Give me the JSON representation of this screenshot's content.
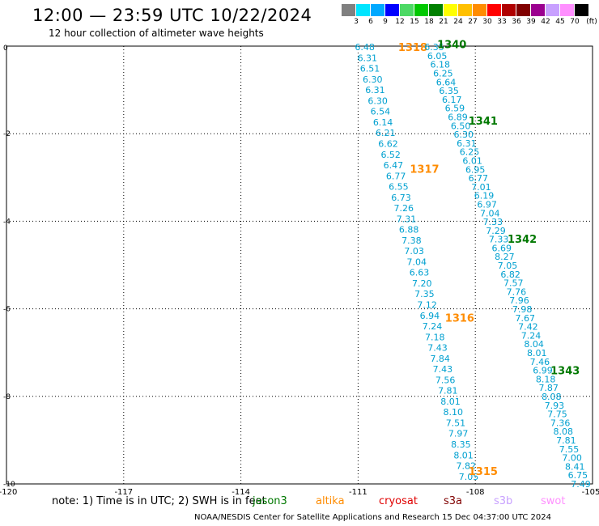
{
  "title": "12:00 — 23:59 UTC 10/22/2024",
  "subtitle": "12 hour collection of altimeter wave heights",
  "colorbar": {
    "labels": [
      "3",
      "6",
      "9",
      "12",
      "15",
      "18",
      "21",
      "24",
      "27",
      "30",
      "33",
      "36",
      "39",
      "42",
      "45",
      "70"
    ],
    "unit": "(ft)",
    "colors": [
      "#808080",
      "#00e5ff",
      "#00a9ff",
      "#0000ff",
      "#4cd964",
      "#00c800",
      "#008000",
      "#ffff00",
      "#ffc000",
      "#ff8c00",
      "#ff0000",
      "#b00000",
      "#800000",
      "#9b008f",
      "#c8a0ff",
      "#ff90ff",
      "#000000"
    ]
  },
  "axes": {
    "x_ticks": [
      "-120",
      "-117",
      "-114",
      "-111",
      "-108",
      "-105"
    ],
    "y_ticks": [
      "0",
      "-2",
      "-4",
      "-6",
      "-8",
      "-10"
    ]
  },
  "wave_colors": {
    "value_text": "#00a0d0",
    "jason3": "#007800",
    "altika": "#ff8c00"
  },
  "tracks": [
    {
      "pass": "1318",
      "color": "#ff8c00",
      "label_pos": [
        -109.6,
        -0.02
      ],
      "start": [
        -110.83,
        -0.02
      ],
      "end": [
        -108.17,
        -9.83
      ],
      "values": [
        "6.48",
        "6.31",
        "6.51",
        "6.30",
        "6.31",
        "6.30",
        "6.54",
        "6.14",
        "6.21",
        "6.62",
        "6.52",
        "6.47",
        "6.77",
        "6.55",
        "6.73",
        "7.26",
        "7.31",
        "6.88",
        "7.38",
        "7.03",
        "7.04",
        "6.63",
        "7.20",
        "7.35",
        "7.12",
        "6.94",
        "7.24",
        "7.18",
        "7.43",
        "7.84",
        "7.43",
        "7.56",
        "7.81",
        "8.01",
        "8.10",
        "7.51",
        "7.97",
        "8.35",
        "8.01",
        "7.82",
        "7.05"
      ]
    },
    {
      "pass": "1317",
      "color": "#ff8c00",
      "label_pos": [
        -109.3,
        -2.8
      ],
      "start": null,
      "end": null,
      "values": []
    },
    {
      "pass": "1316",
      "color": "#ff8c00",
      "label_pos": [
        -108.4,
        -6.2
      ],
      "start": null,
      "end": null,
      "values": []
    },
    {
      "pass": "1315",
      "color": "#ff8c00",
      "label_pos": [
        -107.8,
        -9.7
      ],
      "start": null,
      "end": null,
      "values": []
    },
    {
      "pass": "1340",
      "color": "#007800",
      "label_pos": [
        -108.6,
        0.05
      ],
      "start": [
        -109.05,
        -0.02
      ],
      "end": [
        -105.3,
        -10.0
      ],
      "values": [
        "6.35",
        "6.05",
        "6.18",
        "6.25",
        "6.64",
        "6.35",
        "6.17",
        "6.59",
        "6.89",
        "6.50",
        "6.30",
        "6.31",
        "6.25",
        "6.01",
        "6.95",
        "6.77",
        "7.01",
        "6.19",
        "6.97",
        "7.04",
        "7.33",
        "7.29",
        "7.33",
        "6.69",
        "8.27",
        "7.05",
        "6.82",
        "7.57",
        "7.76",
        "7.96",
        "7.98",
        "7.67",
        "7.42",
        "7.24",
        "8.04",
        "8.01",
        "7.46",
        "6.99",
        "8.18",
        "7.87",
        "8.08",
        "7.93",
        "7.75",
        "7.36",
        "8.08",
        "7.81",
        "7.55",
        "7.00",
        "8.41",
        "6.75",
        "7.49"
      ]
    },
    {
      "pass": "1341",
      "color": "#007800",
      "label_pos": [
        -107.8,
        -1.7
      ],
      "start": null,
      "end": null,
      "values": []
    },
    {
      "pass": "1342",
      "color": "#007800",
      "label_pos": [
        -106.8,
        -4.4
      ],
      "start": null,
      "end": null,
      "values": []
    },
    {
      "pass": "1343",
      "color": "#007800",
      "label_pos": [
        -105.7,
        -7.4
      ],
      "start": null,
      "end": null,
      "values": []
    }
  ],
  "note": "note: 1) Time is in UTC; 2) SWH is in feet",
  "satellites": [
    {
      "name": "jason3",
      "color": "#007800"
    },
    {
      "name": "altika",
      "color": "#ff8c00"
    },
    {
      "name": "cryosat",
      "color": "#e00000"
    },
    {
      "name": "s3a",
      "color": "#800000"
    },
    {
      "name": "s3b",
      "color": "#c8a0ff"
    },
    {
      "name": "swot",
      "color": "#ff90ff"
    }
  ],
  "footer": "NOAA/NESDIS Center for Satellite Applications and Research   15 Dec 04:37:00 UTC 2024"
}
